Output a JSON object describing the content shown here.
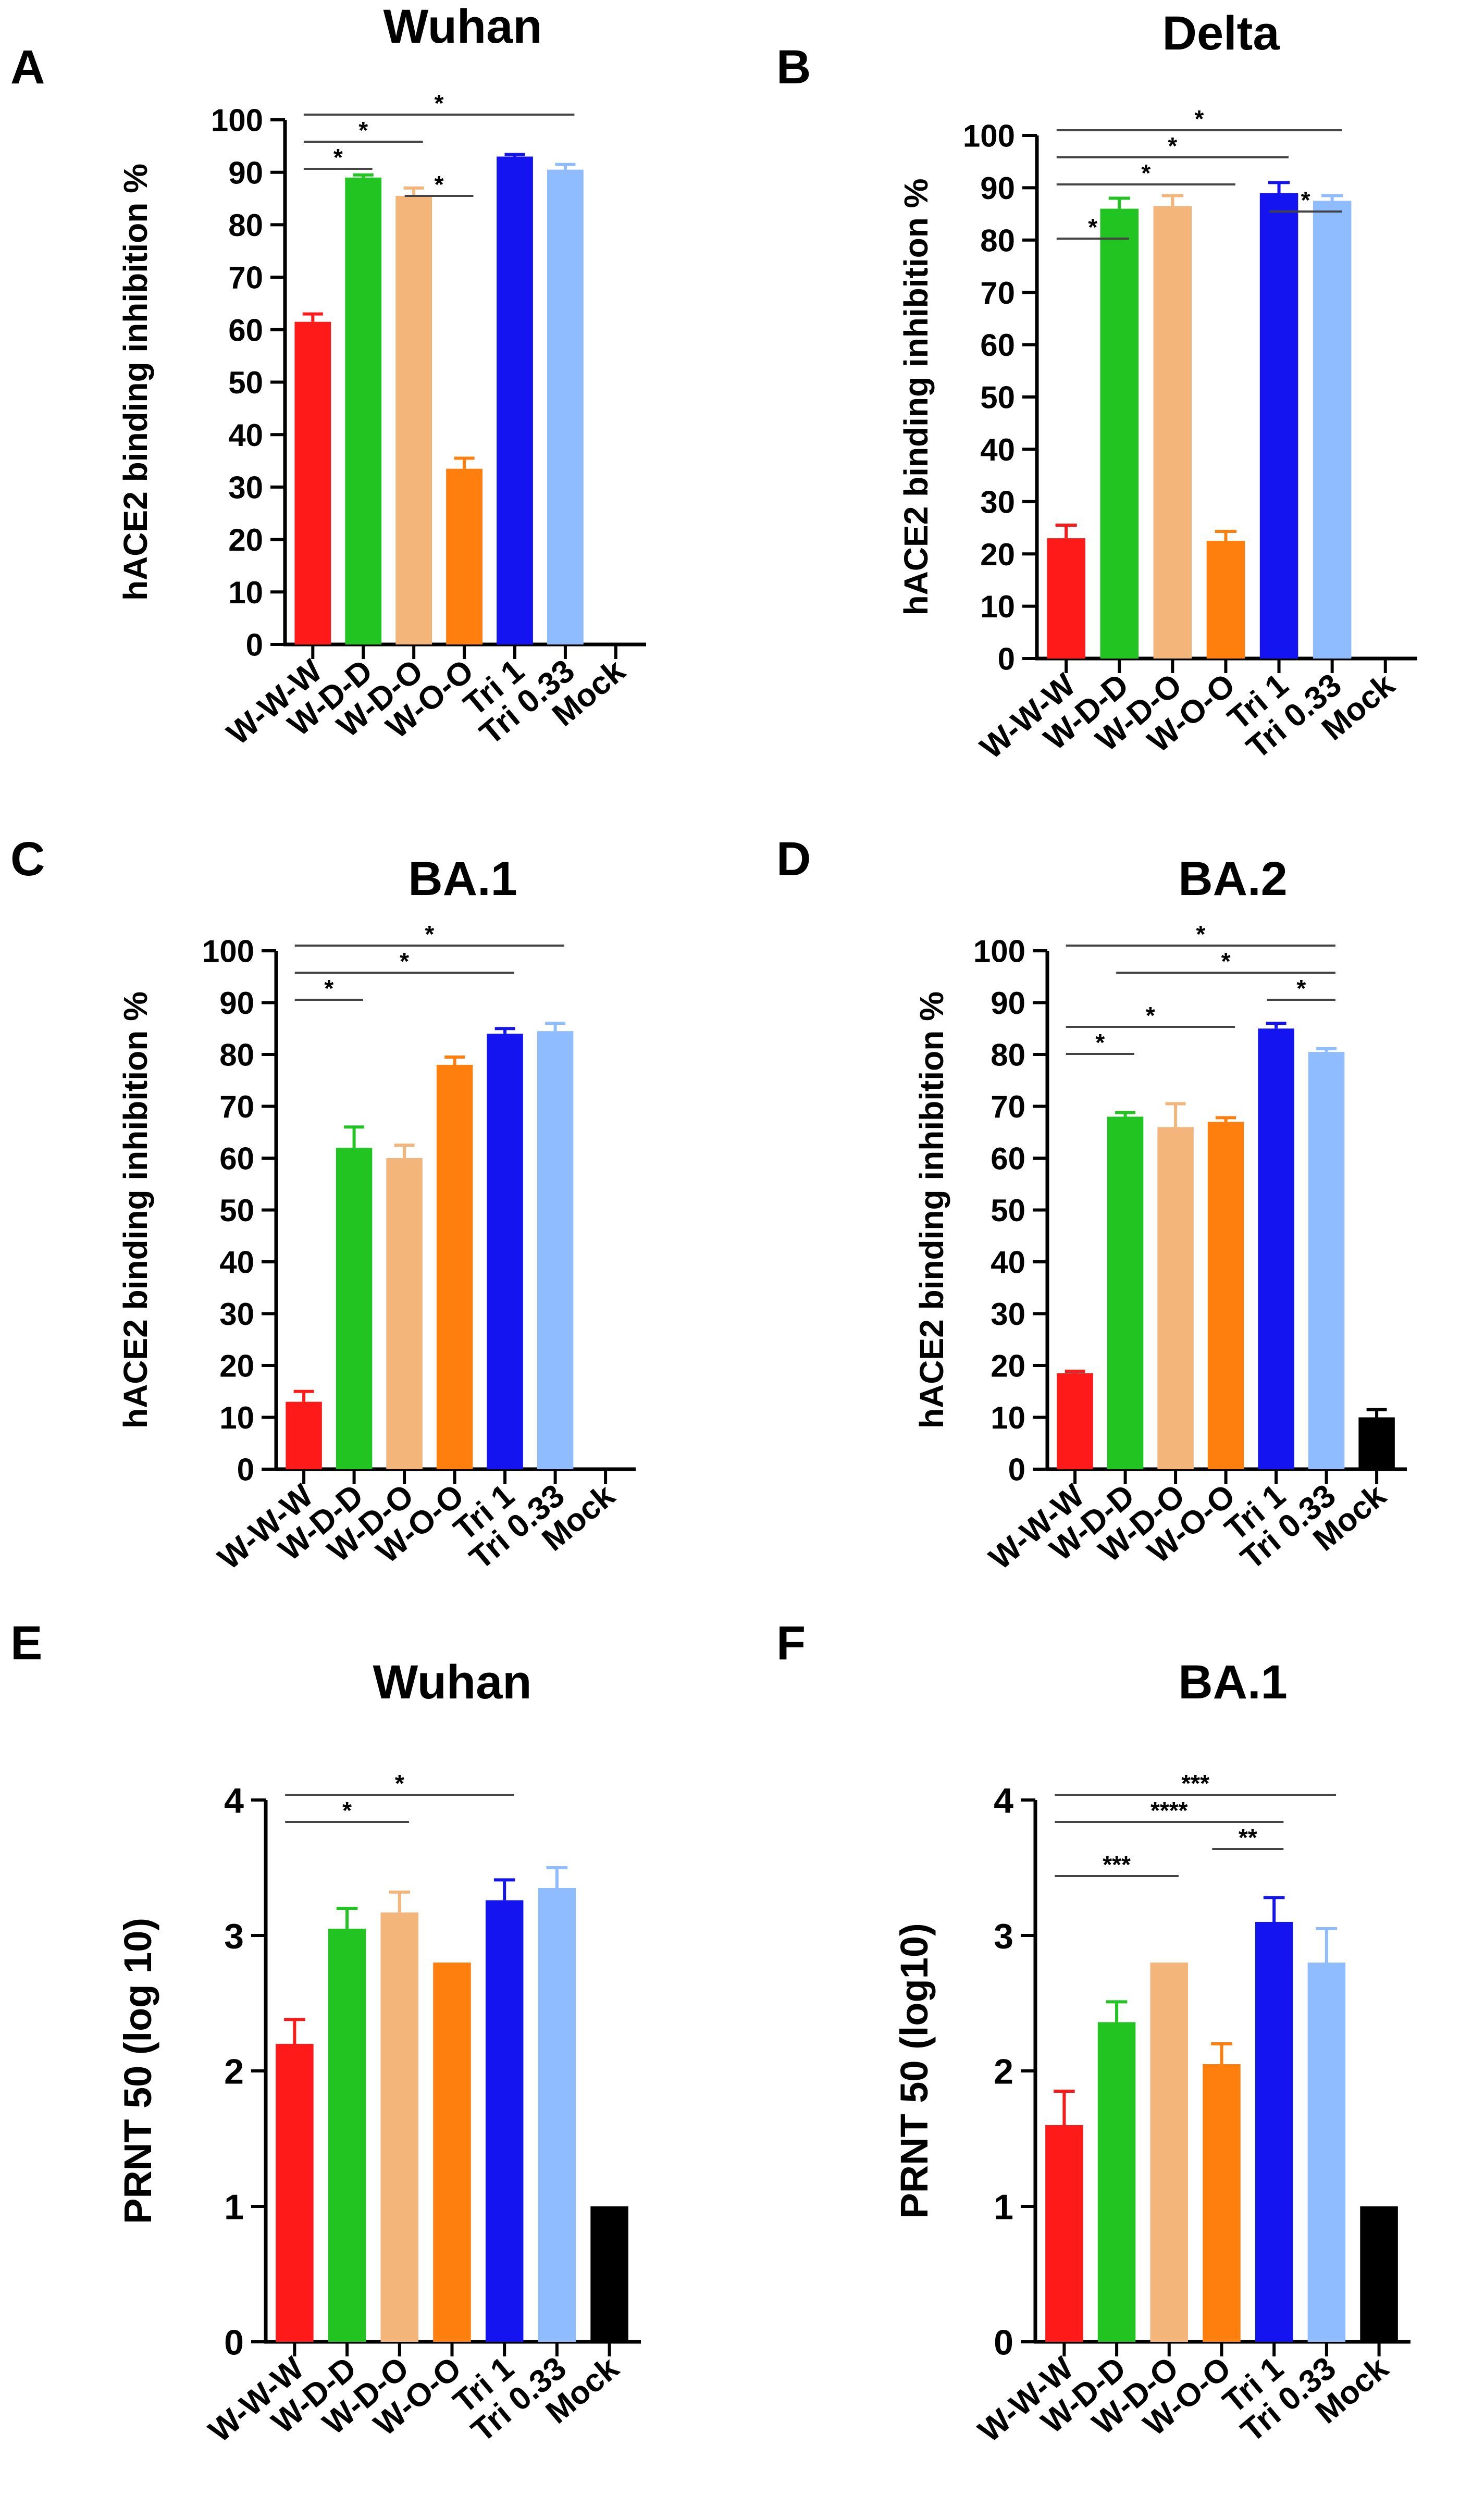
{
  "figure": {
    "colors": {
      "W-W-W": "#ff1a1a",
      "W-D-D": "#22c422",
      "W-D-O": "#f4b57a",
      "W-O-O": "#ff7f0e",
      "Tri 1": "#1414f0",
      "Tri 0.33": "#8fbcff",
      "Mock": "#000000"
    },
    "axis_color": "#000000",
    "sig_color": "#444444"
  },
  "chart_data": [
    {
      "panel": "A",
      "type": "bar",
      "title": "Wuhan",
      "ylabel": "hACE2 binding inhibition %",
      "xlabel": "",
      "ylim": [
        0,
        100
      ],
      "yticks": [
        0,
        10,
        20,
        30,
        40,
        50,
        60,
        70,
        80,
        90,
        100
      ],
      "categories": [
        "W-W-W",
        "W-D-D",
        "W-D-O",
        "W-O-O",
        "Tri 1",
        "Tri 0.33",
        "Mock"
      ],
      "values": [
        61.5,
        89,
        85.5,
        33.5,
        93,
        90.5,
        null
      ],
      "errors": [
        1.5,
        0.5,
        1.5,
        2,
        0.4,
        1,
        null
      ],
      "significance": [
        {
          "from": 0,
          "to": 5,
          "label": "*"
        },
        {
          "from": 0,
          "to": 2,
          "label": "*"
        },
        {
          "from": 0,
          "to": 1,
          "label": "*"
        },
        {
          "from": 2,
          "to": 3,
          "label": "*"
        }
      ]
    },
    {
      "panel": "B",
      "type": "bar",
      "title": "Delta",
      "ylabel": "hACE2 binding inhibition %",
      "xlabel": "",
      "ylim": [
        0,
        100
      ],
      "yticks": [
        0,
        10,
        20,
        30,
        40,
        50,
        60,
        70,
        80,
        90,
        100
      ],
      "categories": [
        "W-W-W",
        "W-D-D",
        "W-D-O",
        "W-O-O",
        "Tri 1",
        "Tri 0.33",
        "Mock"
      ],
      "values": [
        23,
        86,
        86.5,
        22.5,
        89,
        87.5,
        null
      ],
      "errors": [
        2.5,
        2,
        2,
        1.8,
        2,
        1,
        null
      ],
      "significance": [
        {
          "from": 0,
          "to": 5,
          "label": "*"
        },
        {
          "from": 0,
          "to": 4,
          "label": "*"
        },
        {
          "from": 0,
          "to": 3,
          "label": "*"
        },
        {
          "from": 4,
          "to": 5,
          "label": "*"
        },
        {
          "from": 0,
          "to": 1,
          "label": "*"
        }
      ]
    },
    {
      "panel": "C",
      "type": "bar",
      "title": "BA.1",
      "ylabel": "hACE2 binding inhibition %",
      "xlabel": "",
      "ylim": [
        0,
        100
      ],
      "yticks": [
        0,
        10,
        20,
        30,
        40,
        50,
        60,
        70,
        80,
        90,
        100
      ],
      "categories": [
        "W-W-W",
        "W-D-D",
        "W-D-O",
        "W-O-O",
        "Tri 1",
        "Tri 0.33",
        "Mock"
      ],
      "values": [
        13,
        62,
        60,
        78,
        84,
        84.5,
        null
      ],
      "errors": [
        2,
        4,
        2.5,
        1.5,
        1,
        1.5,
        null
      ],
      "significance": [
        {
          "from": 0,
          "to": 5,
          "label": "*"
        },
        {
          "from": 0,
          "to": 4,
          "label": "*"
        },
        {
          "from": 0,
          "to": 1,
          "label": "*"
        }
      ]
    },
    {
      "panel": "D",
      "type": "bar",
      "title": "BA.2",
      "ylabel": "hACE2 binding inhibition %",
      "xlabel": "",
      "ylim": [
        0,
        100
      ],
      "yticks": [
        0,
        10,
        20,
        30,
        40,
        50,
        60,
        70,
        80,
        90,
        100
      ],
      "categories": [
        "W-W-W",
        "W-D-D",
        "W-D-O",
        "W-O-O",
        "Tri 1",
        "Tri 0.33",
        "Mock"
      ],
      "values": [
        18.5,
        68,
        66,
        67,
        85,
        80.5,
        10
      ],
      "errors": [
        0.4,
        0.8,
        4.5,
        0.8,
        1,
        0.6,
        1.5
      ],
      "significance": [
        {
          "from": 0,
          "to": 5,
          "label": "*"
        },
        {
          "from": 1,
          "to": 5,
          "label": "*"
        },
        {
          "from": 4,
          "to": 5,
          "label": "*"
        },
        {
          "from": 0,
          "to": 3,
          "label": "*"
        },
        {
          "from": 0,
          "to": 1,
          "label": "*"
        }
      ]
    },
    {
      "panel": "E",
      "type": "bar",
      "title": "Wuhan",
      "ylabel": "PRNT 50 (log 10)",
      "xlabel": "",
      "ylim": [
        0,
        4
      ],
      "yticks": [
        0,
        1,
        2,
        3,
        4
      ],
      "categories": [
        "W-W-W",
        "W-D-D",
        "W-D-O",
        "W-O-O",
        "Tri 1",
        "Tri 0.33",
        "Mock"
      ],
      "values": [
        2.2,
        3.05,
        3.17,
        2.8,
        3.26,
        3.35,
        1
      ],
      "errors": [
        0.18,
        0.15,
        0.15,
        0,
        0.15,
        0.15,
        0
      ],
      "significance": [
        {
          "from": 0,
          "to": 4,
          "label": "*"
        },
        {
          "from": 0,
          "to": 2,
          "label": "*"
        }
      ]
    },
    {
      "panel": "F",
      "type": "bar",
      "title": "BA.1",
      "ylabel": "PRNT 50 (log10)",
      "xlabel": "",
      "ylim": [
        0,
        4
      ],
      "yticks": [
        0,
        1,
        2,
        3,
        4
      ],
      "categories": [
        "W-W-W",
        "W-D-D",
        "W-D-O",
        "W-O-O",
        "Tri 1",
        "Tri 0.33",
        "Mock"
      ],
      "values": [
        1.6,
        2.36,
        2.8,
        2.05,
        3.1,
        2.8,
        1
      ],
      "errors": [
        0.25,
        0.15,
        0,
        0.15,
        0.18,
        0.25,
        0
      ],
      "significance": [
        {
          "from": 0,
          "to": 5,
          "label": "***"
        },
        {
          "from": 0,
          "to": 4,
          "label": "****"
        },
        {
          "from": 3,
          "to": 4,
          "label": "**"
        },
        {
          "from": 0,
          "to": 2,
          "label": "***"
        }
      ]
    }
  ]
}
